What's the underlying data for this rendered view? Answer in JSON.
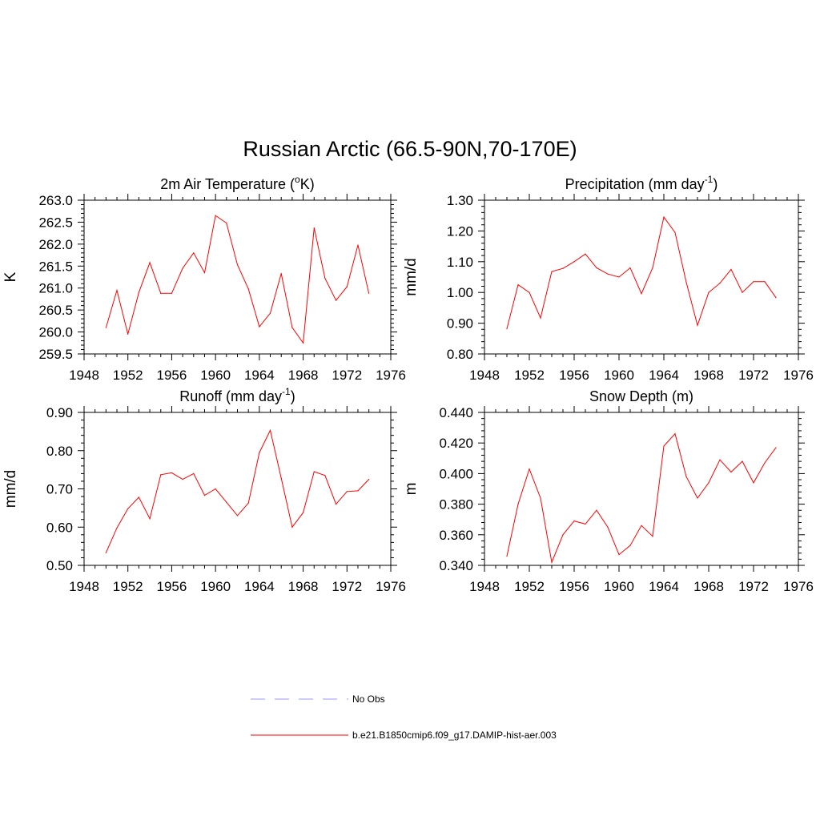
{
  "title": "Russian Arctic (66.5-90N,70-170E)",
  "chart_data": [
    {
      "type": "line",
      "title": "2m Air Temperature (",
      "title_sup": "o",
      "title_tail": "K)",
      "ylabel": "K",
      "xlim": [
        1948,
        1976
      ],
      "ylim": [
        259.5,
        263.0
      ],
      "xticks": [
        "1948",
        "1952",
        "1956",
        "1960",
        "1964",
        "1968",
        "1972",
        "1976"
      ],
      "yticks": [
        "259.5",
        "260.0",
        "260.5",
        "261.0",
        "261.5",
        "262.0",
        "262.5",
        "263.0"
      ],
      "x": [
        1950,
        1951,
        1952,
        1953,
        1954,
        1955,
        1956,
        1957,
        1958,
        1959,
        1960,
        1961,
        1962,
        1963,
        1964,
        1965,
        1966,
        1967,
        1968,
        1969,
        1970,
        1971,
        1972,
        1973,
        1974
      ],
      "series": [
        {
          "color": "#ff0000",
          "values": [
            260.1,
            260.95,
            259.95,
            260.9,
            261.58,
            260.88,
            260.88,
            261.45,
            261.8,
            261.35,
            262.65,
            262.48,
            261.53,
            260.98,
            260.12,
            260.43,
            261.33,
            260.1,
            259.75,
            262.37,
            261.22,
            260.72,
            261.03,
            261.98,
            260.88
          ]
        }
      ]
    },
    {
      "type": "line",
      "title": "Precipitation (mm day",
      "title_sup": "-1",
      "title_tail": ")",
      "ylabel": "mm/d",
      "xlim": [
        1948,
        1976
      ],
      "ylim": [
        0.8,
        1.3
      ],
      "xticks": [
        "1948",
        "1952",
        "1956",
        "1960",
        "1964",
        "1968",
        "1972",
        "1976"
      ],
      "yticks": [
        "0.80",
        "0.90",
        "1.00",
        "1.10",
        "1.20",
        "1.30"
      ],
      "x": [
        1950,
        1951,
        1952,
        1953,
        1954,
        1955,
        1956,
        1957,
        1958,
        1959,
        1960,
        1961,
        1962,
        1963,
        1964,
        1965,
        1966,
        1967,
        1968,
        1969,
        1970,
        1971,
        1972,
        1973,
        1974
      ],
      "series": [
        {
          "color": "#ff0000",
          "values": [
            0.882,
            1.025,
            1.0,
            0.917,
            1.068,
            1.078,
            1.1,
            1.125,
            1.08,
            1.06,
            1.05,
            1.08,
            0.996,
            1.08,
            1.245,
            1.195,
            1.033,
            0.893,
            1.0,
            1.03,
            1.075,
            1.0,
            1.035,
            1.035,
            0.983
          ]
        }
      ]
    },
    {
      "type": "line",
      "title": "Runoff (mm day",
      "title_sup": "-1",
      "title_tail": ")",
      "ylabel": "mm/d",
      "xlim": [
        1948,
        1976
      ],
      "ylim": [
        0.5,
        0.9
      ],
      "xticks": [
        "1948",
        "1952",
        "1956",
        "1960",
        "1964",
        "1968",
        "1972",
        "1976"
      ],
      "yticks": [
        "0.50",
        "0.60",
        "0.70",
        "0.80",
        "0.90"
      ],
      "x": [
        1950,
        1951,
        1952,
        1953,
        1954,
        1955,
        1956,
        1957,
        1958,
        1959,
        1960,
        1961,
        1962,
        1963,
        1964,
        1965,
        1966,
        1967,
        1968,
        1969,
        1970,
        1971,
        1972,
        1973,
        1974
      ],
      "series": [
        {
          "color": "#ff0000",
          "values": [
            0.533,
            0.598,
            0.648,
            0.678,
            0.622,
            0.737,
            0.742,
            0.725,
            0.74,
            0.683,
            0.7,
            0.665,
            0.63,
            0.663,
            0.795,
            0.853,
            0.728,
            0.6,
            0.638,
            0.745,
            0.735,
            0.66,
            0.693,
            0.695,
            0.725
          ]
        }
      ]
    },
    {
      "type": "line",
      "title": "Snow Depth (m)",
      "title_sup": "",
      "title_tail": "",
      "ylabel": "m",
      "xlim": [
        1948,
        1976
      ],
      "ylim": [
        0.34,
        0.44
      ],
      "xticks": [
        "1948",
        "1952",
        "1956",
        "1960",
        "1964",
        "1968",
        "1972",
        "1976"
      ],
      "yticks": [
        "0.340",
        "0.360",
        "0.380",
        "0.400",
        "0.420",
        "0.440"
      ],
      "x": [
        1950,
        1951,
        1952,
        1953,
        1954,
        1955,
        1956,
        1957,
        1958,
        1959,
        1960,
        1961,
        1962,
        1963,
        1964,
        1965,
        1966,
        1967,
        1968,
        1969,
        1970,
        1971,
        1972,
        1973,
        1974
      ],
      "series": [
        {
          "color": "#ff0000",
          "values": [
            0.346,
            0.38,
            0.403,
            0.384,
            0.342,
            0.36,
            0.369,
            0.367,
            0.376,
            0.365,
            0.347,
            0.353,
            0.366,
            0.359,
            0.418,
            0.426,
            0.398,
            0.384,
            0.394,
            0.409,
            0.401,
            0.408,
            0.394,
            0.407,
            0.417
          ]
        }
      ]
    }
  ],
  "legend": [
    {
      "label": "No Obs",
      "color": "#9999ff",
      "dash": true
    },
    {
      "label": "b.e21.B1850cmip6.f09_g17.DAMIP-hist-aer.003",
      "color": "#ff0000",
      "dash": false
    }
  ]
}
